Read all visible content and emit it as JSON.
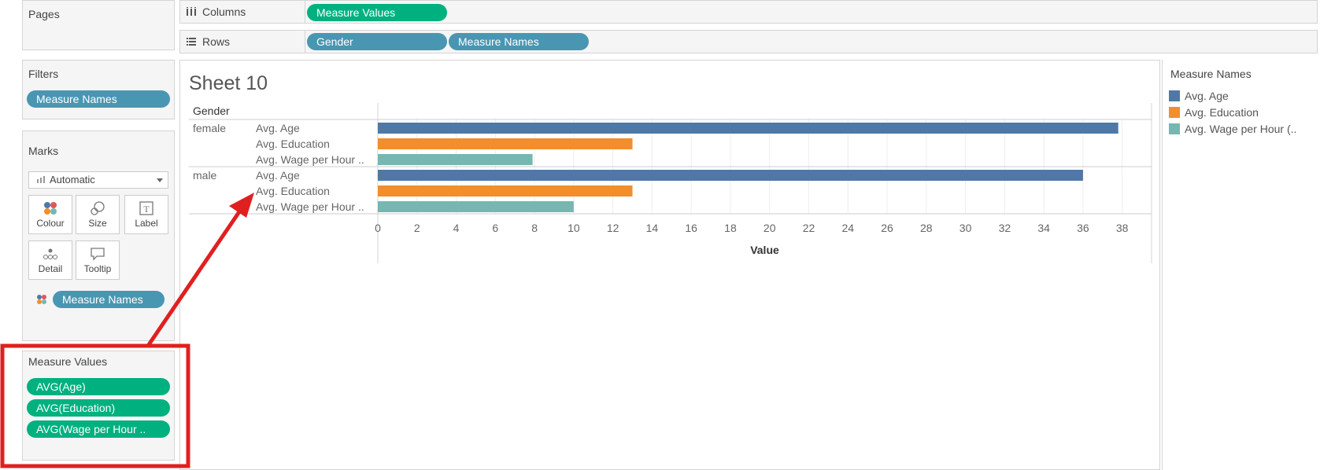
{
  "pages_panel": {
    "title": "Pages"
  },
  "shelves": {
    "columns": {
      "label": "Columns",
      "pills": [
        "Measure Values"
      ]
    },
    "rows": {
      "label": "Rows",
      "pills": [
        "Gender",
        "Measure Names"
      ]
    }
  },
  "filters_panel": {
    "title": "Filters",
    "pills": [
      "Measure Names"
    ]
  },
  "marks_panel": {
    "title": "Marks",
    "mark_type": "Automatic",
    "buttons": [
      "Colour",
      "Size",
      "Label",
      "Detail",
      "Tooltip"
    ],
    "color_pill": "Measure Names"
  },
  "measure_values_panel": {
    "title": "Measure Values",
    "pills": [
      "AVG(Age)",
      "AVG(Education)",
      "AVG(Wage per Hour .."
    ]
  },
  "sheet": {
    "title": "Sheet 10"
  },
  "legend": {
    "title": "Measure Names",
    "items": [
      {
        "label": "Avg. Age",
        "color": "#4e79a7"
      },
      {
        "label": "Avg. Education",
        "color": "#f28e2b"
      },
      {
        "label": "Avg. Wage per Hour (..",
        "color": "#76b7b2"
      }
    ]
  },
  "annotation": {
    "color": "#e02020"
  },
  "chart_data": {
    "type": "bar",
    "orientation": "horizontal",
    "row_header": "Gender",
    "xlabel": "Value",
    "xlim": [
      0,
      39.5
    ],
    "x_ticks": [
      0,
      2,
      4,
      6,
      8,
      10,
      12,
      14,
      16,
      18,
      20,
      22,
      24,
      26,
      28,
      30,
      32,
      34,
      36,
      38
    ],
    "grid": true,
    "groups": [
      {
        "name": "female",
        "bars": [
          {
            "measure": "Avg. Age",
            "value": 37.8,
            "color": "#4e79a7"
          },
          {
            "measure": "Avg. Education",
            "value": 13.0,
            "color": "#f28e2b"
          },
          {
            "measure": "Avg. Wage per Hour ..",
            "value": 7.9,
            "color": "#76b7b2"
          }
        ]
      },
      {
        "name": "male",
        "bars": [
          {
            "measure": "Avg. Age",
            "value": 36.0,
            "color": "#4e79a7"
          },
          {
            "measure": "Avg. Education",
            "value": 13.0,
            "color": "#f28e2b"
          },
          {
            "measure": "Avg. Wage per Hour ..",
            "value": 10.0,
            "color": "#76b7b2"
          }
        ]
      }
    ]
  }
}
